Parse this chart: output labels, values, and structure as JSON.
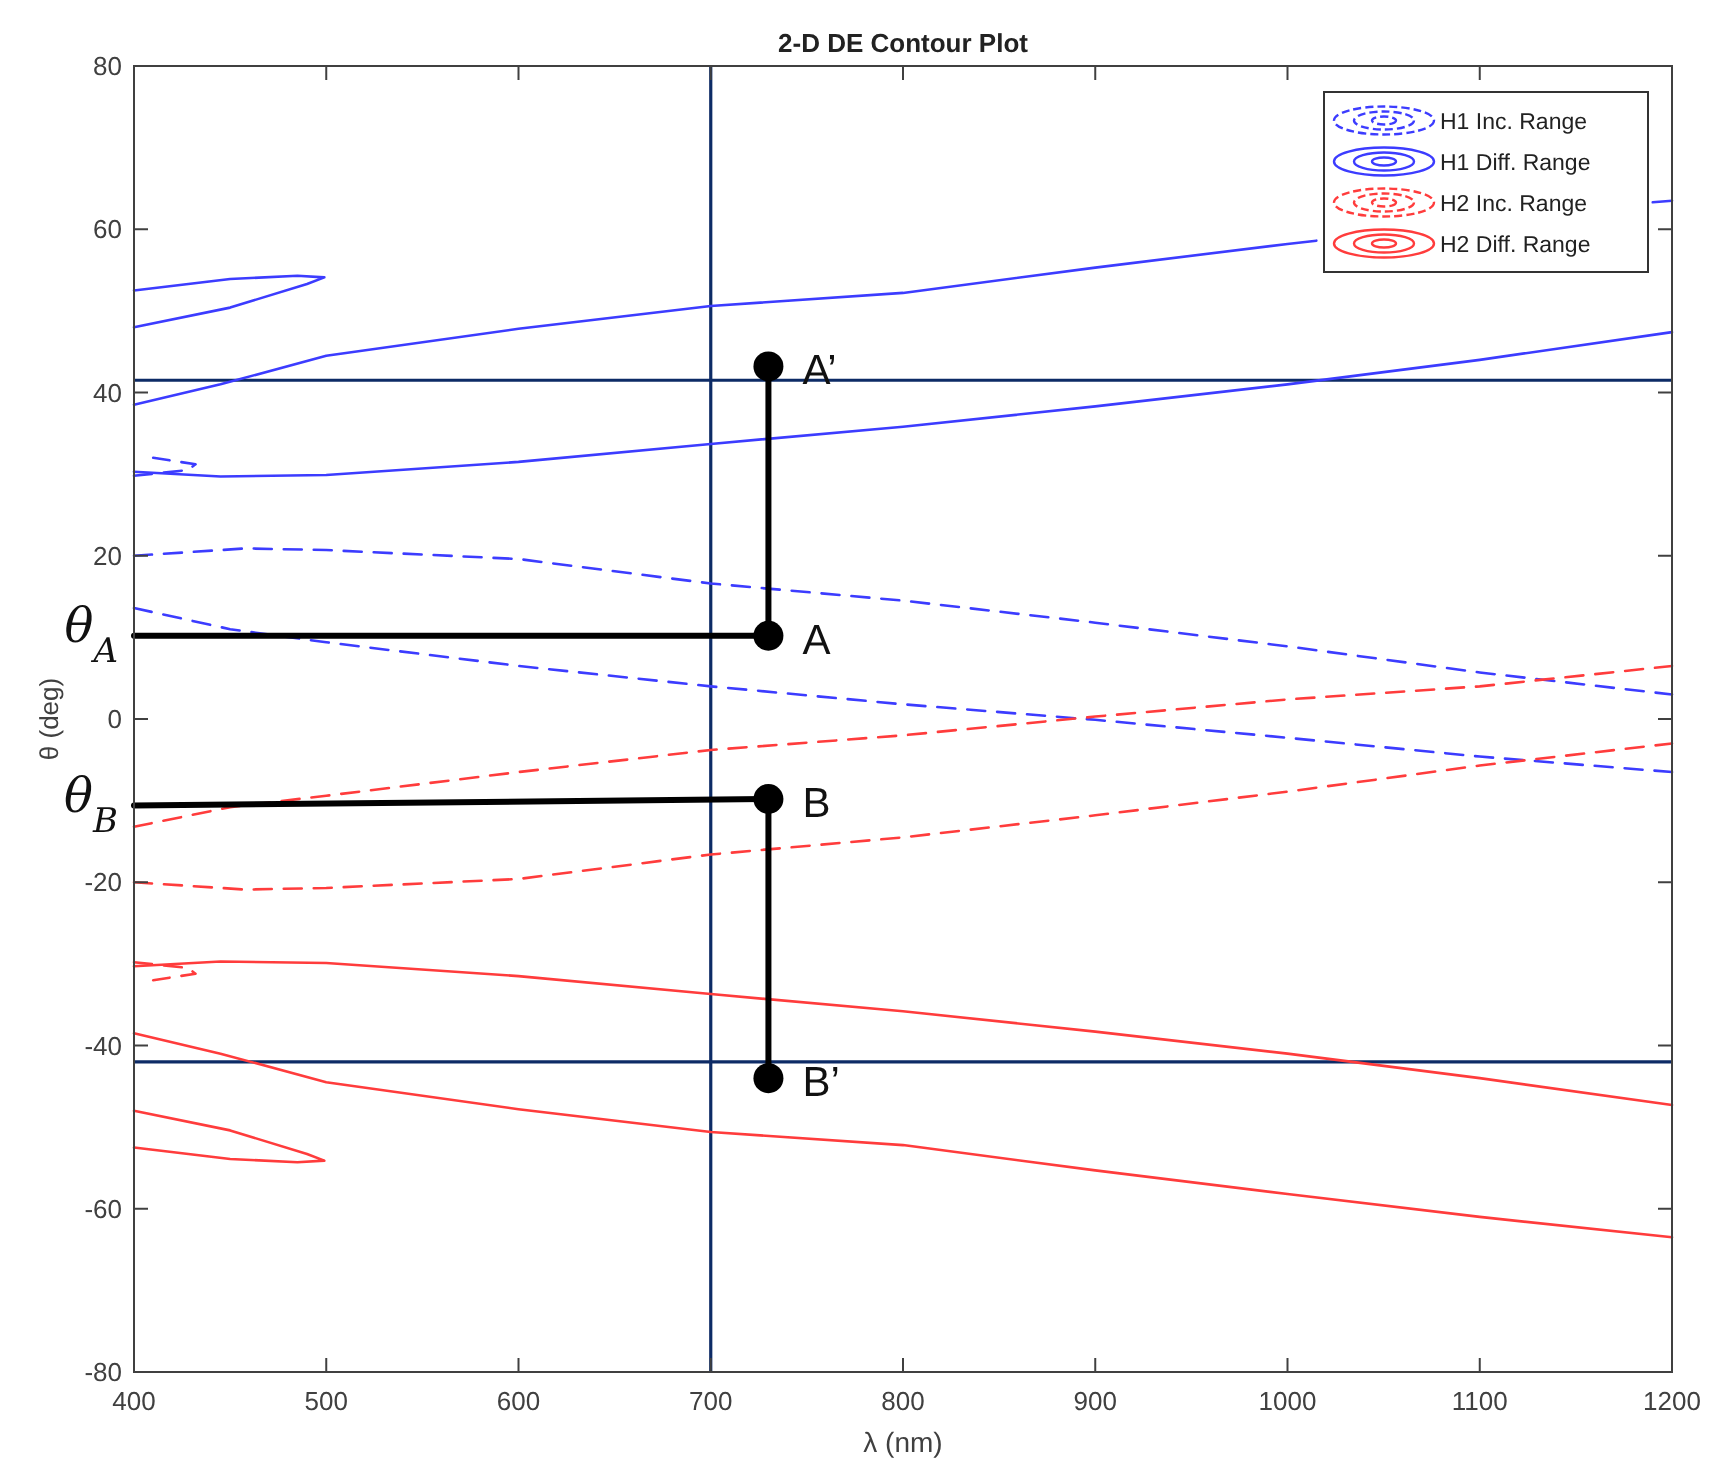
{
  "chart_data": {
    "type": "line",
    "title": "2-D DE Contour Plot",
    "xlabel": "λ (nm)",
    "ylabel": "θ (deg)",
    "xlim": [
      400,
      1200
    ],
    "ylim": [
      -80,
      80
    ],
    "xticks": [
      400,
      500,
      600,
      700,
      800,
      900,
      1000,
      1100,
      1200
    ],
    "yticks": [
      -80,
      -60,
      -40,
      -20,
      0,
      20,
      40,
      60,
      80
    ],
    "grid": false,
    "legend": "top right",
    "series": [
      {
        "name": "H1 Inc. Range",
        "color": "#3c3cff",
        "line_style": "dashed",
        "x": [
          400,
          458,
          500,
          600,
          700,
          800,
          900,
          1000,
          1100,
          1200,
          null,
          400,
          450,
          500,
          600,
          700,
          800,
          900,
          1000,
          1100,
          1200,
          null,
          400,
          428,
          432,
          410
        ],
        "values": [
          20,
          20.9,
          20.7,
          19.6,
          16.6,
          14.5,
          11.8,
          8.9,
          5.7,
          3.0,
          null,
          13.6,
          11,
          9.4,
          6.5,
          4,
          1.8,
          -0.1,
          -2.3,
          -4.6,
          -6.5,
          null,
          29.8,
          30.5,
          31.2,
          32
        ]
      },
      {
        "name": "H1 Diff. Range",
        "color": "#3c3cff",
        "line_style": "solid",
        "x": [
          400,
          450,
          485,
          499,
          490,
          450,
          400,
          null,
          400,
          445,
          500,
          600,
          700,
          800,
          900,
          1000,
          1015,
          null,
          1190,
          1200,
          null,
          400,
          445,
          500,
          600,
          700,
          800,
          900,
          1000,
          1100,
          1200
        ],
        "values": [
          52.5,
          53.9,
          54.3,
          54.1,
          53.3,
          50.4,
          48,
          null,
          38.5,
          41,
          44.5,
          47.8,
          50.6,
          52.2,
          55.3,
          58.2,
          58.6,
          null,
          63.3,
          63.5,
          null,
          30.3,
          29.7,
          29.9,
          31.5,
          33.7,
          35.8,
          38.3,
          41,
          44,
          47.4
        ]
      },
      {
        "name": "H2 Inc. Range",
        "color": "#ff3c3c",
        "line_style": "dashed",
        "x": [
          400,
          458,
          500,
          600,
          700,
          800,
          900,
          1000,
          1100,
          1200,
          null,
          400,
          450,
          500,
          600,
          700,
          800,
          900,
          1000,
          1100,
          1200,
          null,
          400,
          428,
          432,
          410
        ],
        "values": [
          -20,
          -20.9,
          -20.7,
          -19.6,
          -16.6,
          -14.5,
          -11.8,
          -8.9,
          -5.7,
          -3.0,
          null,
          -13.2,
          -10.8,
          -9.4,
          -6.5,
          -3.8,
          -2,
          0.3,
          2.4,
          4,
          6.5,
          null,
          -29.8,
          -30.5,
          -31.2,
          -32
        ]
      },
      {
        "name": "H2 Diff. Range",
        "color": "#ff3c3c",
        "line_style": "solid",
        "x": [
          400,
          450,
          485,
          499,
          490,
          450,
          400,
          null,
          400,
          445,
          500,
          600,
          700,
          800,
          900,
          1000,
          1100,
          1200,
          null,
          400,
          445,
          500,
          600,
          700,
          800,
          900,
          1000,
          1100,
          1200
        ],
        "values": [
          -52.5,
          -53.9,
          -54.3,
          -54.1,
          -53.3,
          -50.4,
          -48,
          null,
          -38.5,
          -41,
          -44.5,
          -47.8,
          -50.6,
          -52.2,
          -55.3,
          -58.2,
          -61,
          -63.5,
          null,
          -30.3,
          -29.7,
          -29.9,
          -31.5,
          -33.7,
          -35.8,
          -38.3,
          -41,
          -44,
          -47.3
        ]
      },
      {
        "type": "line",
        "color": "#000000",
        "line_style": "solid",
        "x": [
          400,
          730,
          730
        ],
        "values": [
          10.2,
          10.2,
          43.2
        ]
      },
      {
        "type": "line",
        "color": "#000000",
        "line_style": "solid",
        "x": [
          400,
          730,
          730
        ],
        "values": [
          -10.6,
          -9.8,
          -44
        ]
      },
      {
        "type": "scatter",
        "color": "#000000",
        "marker": "circle",
        "x": [
          730,
          730,
          730,
          730
        ],
        "values": [
          43.2,
          10.2,
          -9.8,
          -44
        ],
        "value_labels": [
          "A’",
          "A",
          "B",
          "B’"
        ]
      }
    ],
    "ref_lines": [
      {
        "axis": "x",
        "value": 700,
        "color": "#0d2b66"
      },
      {
        "axis": "y",
        "value": 41.5,
        "color": "#0d2b66"
      },
      {
        "axis": "y",
        "value": -42,
        "color": "#0d2b66"
      }
    ],
    "annotations": [
      "θ$_{A}$",
      "θ$_{B}$"
    ]
  }
}
